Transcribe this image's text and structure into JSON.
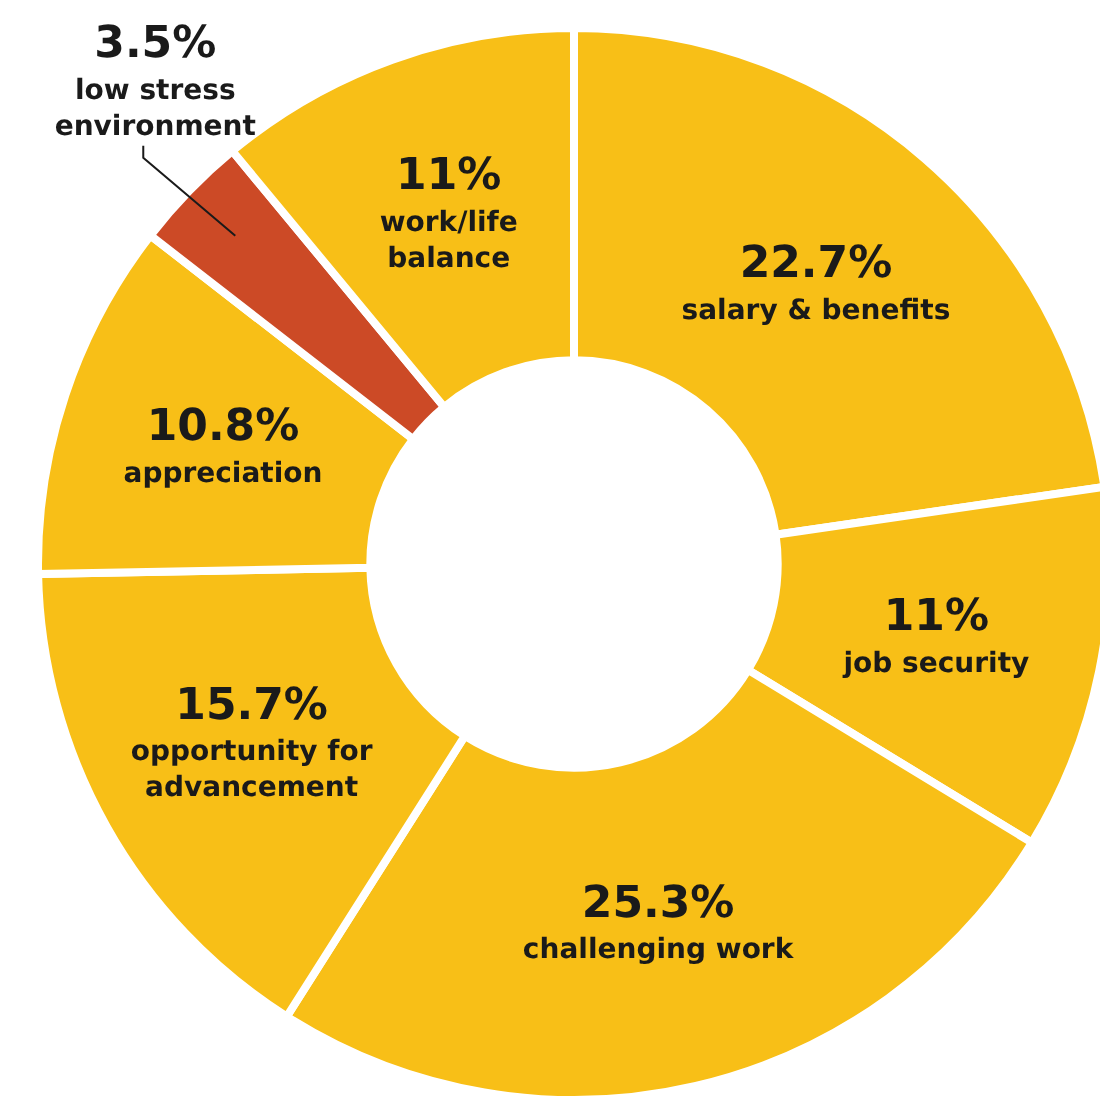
{
  "chart_data": {
    "type": "donut",
    "categories": [
      "salary & benefits",
      "job security",
      "challenging work",
      "opportunity for advancement",
      "appreciation",
      "low stress environment",
      "work/life balance"
    ],
    "values": [
      22.7,
      11,
      25.3,
      15.7,
      10.8,
      3.5,
      11
    ],
    "value_labels": [
      "22.7%",
      "11%",
      "25.3%",
      "15.7%",
      "10.8%",
      "3.5%",
      "11%"
    ],
    "colors": [
      "#f8bf17",
      "#f8bf17",
      "#f8bf17",
      "#f8bf17",
      "#f8bf17",
      "#cc4a26",
      "#f8bf17"
    ],
    "legend": false
  }
}
